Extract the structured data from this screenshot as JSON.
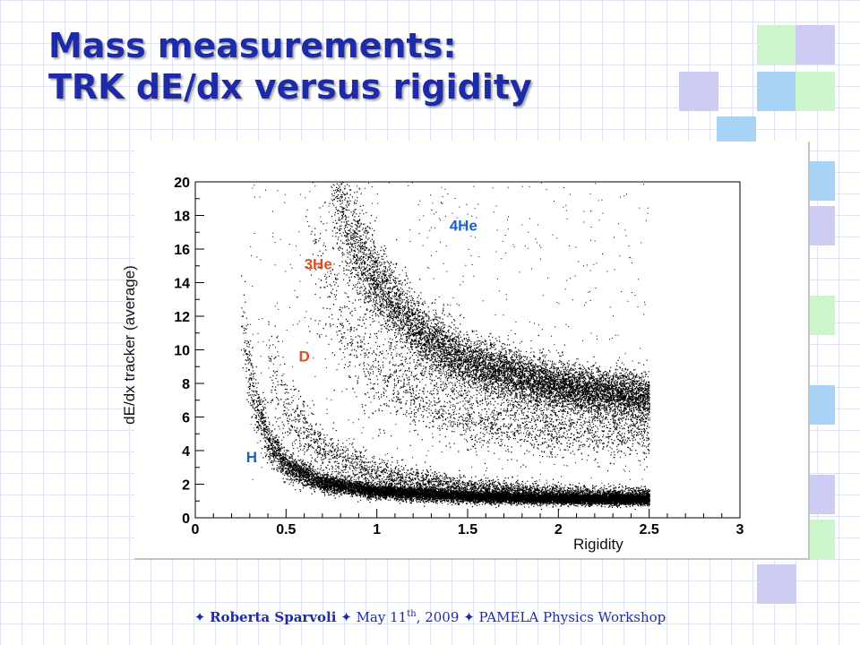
{
  "slide": {
    "title_line1": "Mass measurements:",
    "title_line2": "TRK dE/dx versus rigidity",
    "accent_color": "#1d2ba8",
    "deco_colors": [
      "#ccccf5",
      "#ccf5cc",
      "#a9d3f5"
    ]
  },
  "footer": {
    "star": "✦",
    "author": "Roberta Sparvoli",
    "date_prefix": "May 11",
    "date_sup": "th",
    "date_suffix": ", 2009",
    "event": "PAMELA Physics Workshop"
  },
  "chart_data": {
    "type": "scatter",
    "title": "",
    "xlabel": "Rigidity",
    "ylabel": "dE/dx tracker (average)",
    "xlim": [
      0,
      3
    ],
    "ylim": [
      0,
      20
    ],
    "x_ticks": [
      "0",
      "0.5",
      "1",
      "1.5",
      "2",
      "2.5",
      "3"
    ],
    "y_ticks": [
      "0",
      "2",
      "4",
      "6",
      "8",
      "10",
      "12",
      "14",
      "16",
      "18",
      "20"
    ],
    "x_tick_values": [
      0,
      0.5,
      1,
      1.5,
      2,
      2.5,
      3
    ],
    "y_tick_values": [
      0,
      2,
      4,
      6,
      8,
      10,
      12,
      14,
      16,
      18,
      20
    ],
    "grid": false,
    "series": [
      {
        "name": "H",
        "color": "#000000",
        "rigidity_range": [
          0.25,
          2.5
        ],
        "x": [
          0.25,
          0.3,
          0.4,
          0.5,
          0.7,
          1.0,
          1.5,
          2.0,
          2.5
        ],
        "y": [
          12.0,
          8.2,
          4.6,
          3.1,
          2.1,
          1.6,
          1.3,
          1.15,
          1.1
        ]
      },
      {
        "name": "D",
        "color": "#000000",
        "rigidity_range": [
          0.4,
          2.5
        ],
        "x": [
          0.4,
          0.5,
          0.7,
          1.0,
          1.5,
          2.0,
          2.5
        ],
        "y": [
          9.5,
          6.5,
          4.0,
          2.6,
          1.8,
          1.5,
          1.4
        ]
      },
      {
        "name": "3He",
        "color": "#000000",
        "rigidity_range": [
          0.6,
          2.5
        ],
        "x": [
          0.6,
          0.8,
          1.0,
          1.5,
          2.0,
          2.5
        ],
        "y": [
          17.0,
          11.5,
          8.5,
          6.0,
          5.4,
          5.2
        ]
      },
      {
        "name": "4He",
        "color": "#000000",
        "rigidity_range": [
          0.75,
          2.5
        ],
        "x": [
          0.75,
          0.85,
          1.0,
          1.25,
          1.5,
          2.0,
          2.5
        ],
        "y": [
          20.0,
          17.0,
          13.8,
          10.8,
          9.2,
          7.8,
          7.2
        ]
      }
    ],
    "annotations": [
      {
        "text": "4He",
        "x": 1.4,
        "y": 17.1,
        "color": "#1e62c8"
      },
      {
        "text": "3He",
        "x": 0.6,
        "y": 14.8,
        "color": "#e0501e"
      },
      {
        "text": "D",
        "x": 0.57,
        "y": 9.3,
        "color": "#e0501e"
      },
      {
        "text": "H",
        "x": 0.28,
        "y": 3.3,
        "color": "#1e62c8"
      }
    ]
  }
}
